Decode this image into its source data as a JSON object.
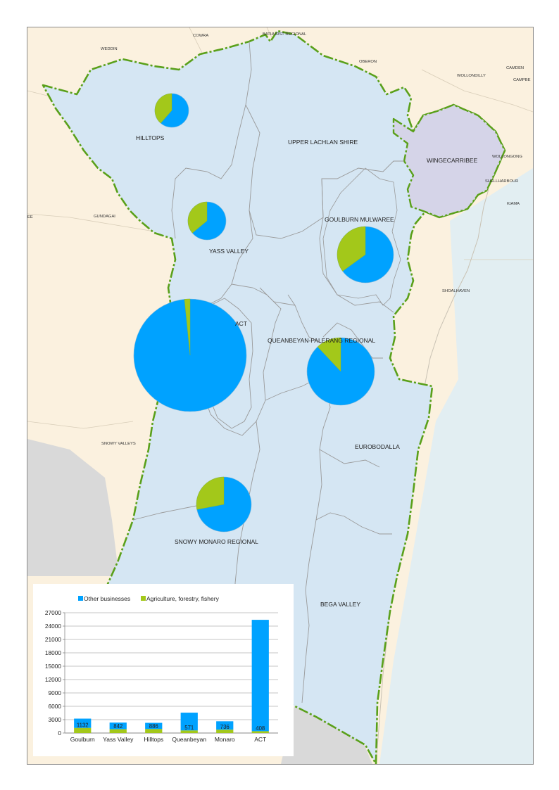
{
  "colors": {
    "other_businesses": "#00a2ff",
    "agriculture": "#a3c81a",
    "region_fill": "#d5e6f3",
    "outside_land": "#fbf1df",
    "sea": "#e2eef2",
    "wingecarribee_fill": "#d5d4e8",
    "boundary_green": "#5aa01a",
    "lga_line": "#8f8f8f"
  },
  "map": {
    "region_labels": {
      "hilltops": "HILLTOPS",
      "upper_lachlan": "UPPER LACHLAN SHIRE",
      "wingecarribee": "WINGECARRIBEE",
      "yass_valley": "YASS VALLEY",
      "goulburn_mulwaree": "GOULBURN MULWAREE",
      "act": "ACT",
      "queanbeyan": "QUEANBEYAN-PALERANG REGIONAL",
      "eurobodalla": "EUROBODALLA",
      "snowy_monaro": "SNOWY MONARO REGIONAL",
      "bega_valley": "BEGA VALLEY"
    },
    "surrounding_labels": {
      "cowra": "COWRA",
      "bathurst": "BATHURST REGIONAL",
      "weddin": "WEDDIN",
      "oberon": "OBERON",
      "wollondilly": "WOLLONDILLY",
      "camden": "CAMDEN",
      "campbelltown": "CAMPBE",
      "wollongong": "WOLLONGONG",
      "shellharbour": "SHELLHARBOUR",
      "kiama": "KIAMA",
      "gundagai": "GUNDAGAI",
      "shoalhaven": "SHOALHAVEN",
      "snowy_valleys": "SNOWY VALLEYS",
      "edge_left": "EE"
    },
    "pies": [
      {
        "region": "Hilltops",
        "agriculture_share": 0.386
      },
      {
        "region": "Yass Valley",
        "agriculture_share": 0.36
      },
      {
        "region": "Goulburn Mulwaree",
        "agriculture_share": 0.35
      },
      {
        "region": "ACT",
        "agriculture_share": 0.016
      },
      {
        "region": "Queanbeyan-Palerang Regional",
        "agriculture_share": 0.12
      },
      {
        "region": "Snowy Monaro Regional",
        "agriculture_share": 0.28
      }
    ]
  },
  "chart_data": {
    "type": "bar",
    "stacked": true,
    "categories": [
      "Goulburn",
      "Yass Valley",
      "Hilltops",
      "Queanbeyan",
      "Monaro",
      "ACT"
    ],
    "series": [
      {
        "name": "Agriculture, forestry, fishery",
        "values": [
          1132,
          842,
          886,
          571,
          736,
          408
        ]
      },
      {
        "name": "Other businesses",
        "values": [
          2100,
          1500,
          1400,
          4000,
          1900,
          25000
        ]
      }
    ],
    "data_labels": [
      "1132",
      "842",
      "886",
      "571",
      "736",
      "408"
    ],
    "ylim": [
      0,
      27000
    ],
    "yticks": [
      0,
      3000,
      6000,
      9000,
      12000,
      15000,
      18000,
      21000,
      24000,
      27000
    ],
    "legend": {
      "position": "top",
      "items": [
        "Other businesses",
        "Agriculture, forestry, fishery"
      ]
    },
    "grid": true,
    "xlabel": "",
    "ylabel": ""
  }
}
